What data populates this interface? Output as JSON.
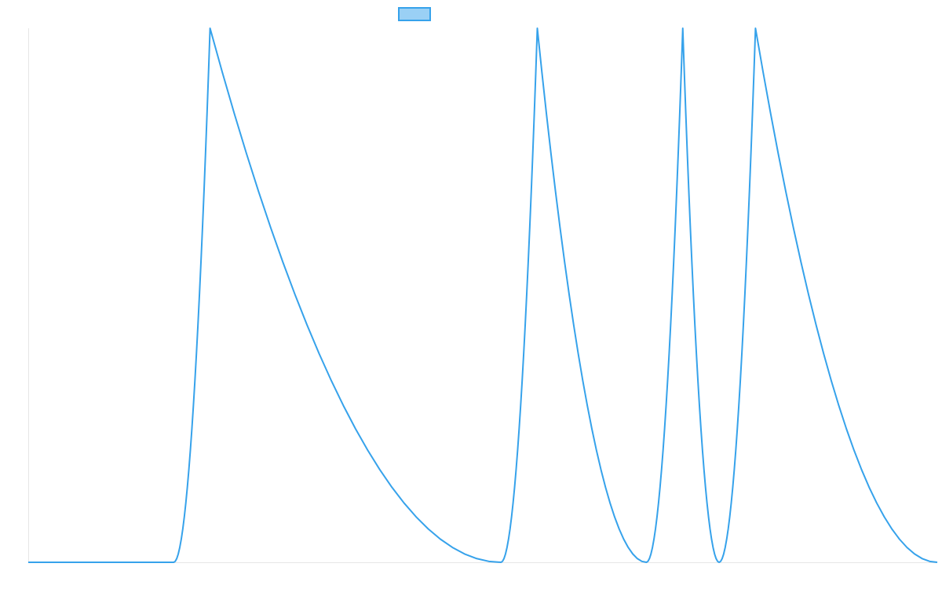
{
  "colors": {
    "line": "#36a2eb",
    "legend_fill": "#9ad0f5",
    "axis": "#e6e6e6",
    "background": "#ffffff"
  },
  "chart_data": {
    "type": "line",
    "title": "",
    "xlabel": "",
    "ylabel": "",
    "x": [
      0,
      4,
      5,
      13,
      14,
      17,
      18,
      19,
      20,
      25
    ],
    "series": [
      {
        "name": "",
        "values": [
          0,
          0,
          1,
          0,
          1,
          0,
          1,
          0,
          1,
          0
        ]
      }
    ],
    "xlim": [
      0,
      25
    ],
    "ylim": [
      0,
      1
    ],
    "grid": false,
    "legend": "top-center",
    "ticks_visible": false
  }
}
